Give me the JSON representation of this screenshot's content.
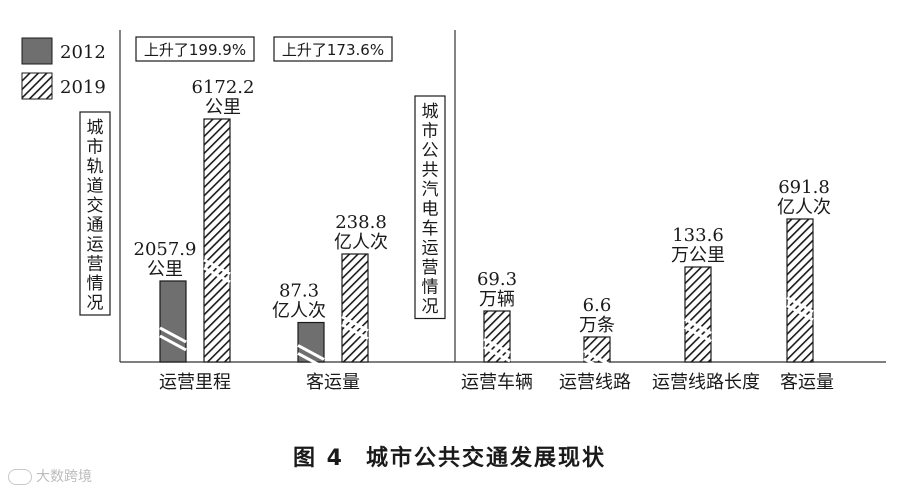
{
  "figure": {
    "caption_number": "图 4",
    "caption_title": "城市公共交通发展现状",
    "watermark": "大数跨境"
  },
  "colors": {
    "solid_2012": "#6f6f6f",
    "hatch_2019": "#1a1a1a",
    "axis": "#333333"
  },
  "chart_data": [
    {
      "type": "bar",
      "group_label": "城市轨道交通运营情况",
      "legend": {
        "placement": "top-left",
        "entries": [
          "2012",
          "2019"
        ]
      },
      "categories": [
        "运营里程",
        "客运量"
      ],
      "series": [
        {
          "name": "2012",
          "values": [
            2057.9,
            87.3
          ]
        },
        {
          "name": "2019",
          "values": [
            6172.2,
            238.8
          ]
        }
      ],
      "data_labels": {
        "2012": [
          [
            "2057.9",
            "公里"
          ],
          [
            "87.3",
            "亿人次"
          ]
        ],
        "2019": [
          [
            "6172.2",
            "公里"
          ],
          [
            "238.8",
            "亿人次"
          ]
        ]
      },
      "annotations": [
        "上升了199.9%",
        "上升了173.6%"
      ]
    },
    {
      "type": "bar",
      "group_label": "城市公共汽电车运营情况",
      "categories": [
        "运营车辆",
        "运营线路",
        "运营线路长度",
        "客运量"
      ],
      "series": [
        {
          "name": "2019",
          "values": [
            69.3,
            6.6,
            133.6,
            691.8
          ]
        }
      ],
      "data_labels": {
        "2019": [
          [
            "69.3",
            "万辆"
          ],
          [
            "6.6",
            "万条"
          ],
          [
            "133.6",
            "万公里"
          ],
          [
            "691.8",
            "亿人次"
          ]
        ]
      }
    }
  ]
}
